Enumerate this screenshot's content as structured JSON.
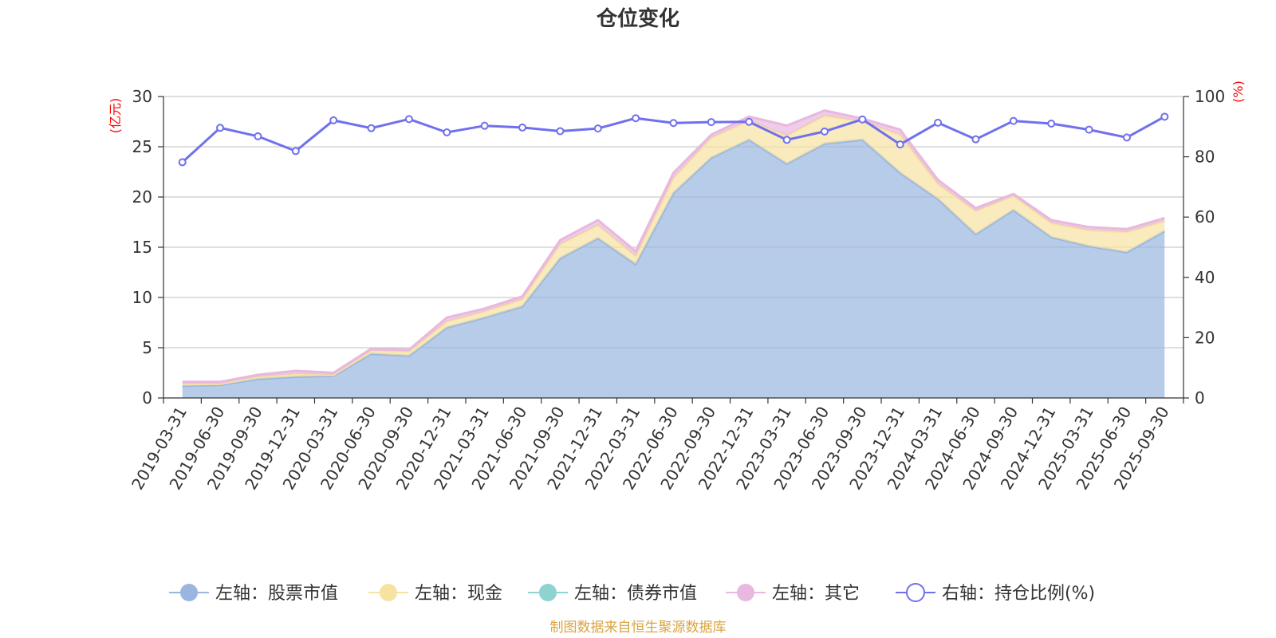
{
  "chart_data": {
    "type": "area",
    "title": "仓位变化",
    "left_axis_unit": "(亿元)",
    "right_axis_unit": "(%)",
    "left_ylim": [
      0,
      30
    ],
    "left_ticks": [
      "0",
      "5",
      "10",
      "15",
      "20",
      "25",
      "30"
    ],
    "right_ylim": [
      0,
      100
    ],
    "right_ticks": [
      "0",
      "20",
      "40",
      "60",
      "80",
      "100"
    ],
    "categories": [
      "2019-03-31",
      "2019-06-30",
      "2019-09-30",
      "2019-12-31",
      "2020-03-31",
      "2020-06-30",
      "2020-09-30",
      "2020-12-31",
      "2021-03-31",
      "2021-06-30",
      "2021-09-30",
      "2021-12-31",
      "2022-03-31",
      "2022-06-30",
      "2022-09-30",
      "2022-12-31",
      "2023-03-31",
      "2023-06-30",
      "2023-09-30",
      "2023-12-31",
      "2024-03-31",
      "2024-06-30",
      "2024-09-30",
      "2024-12-31",
      "2025-03-31",
      "2025-06-30",
      "2025-09-30"
    ],
    "series": [
      {
        "name": "左轴：股票市值",
        "axis": "left",
        "kind": "area",
        "color": "#98b6e0",
        "values": [
          1.2,
          1.3,
          1.9,
          2.1,
          2.2,
          4.4,
          4.2,
          7.0,
          8.0,
          9.1,
          13.9,
          15.9,
          13.3,
          20.4,
          23.9,
          25.7,
          23.3,
          25.3,
          25.7,
          22.4,
          19.8,
          16.3,
          18.7,
          16.0,
          15.1,
          14.5,
          16.6
        ]
      },
      {
        "name": "左轴：现金",
        "axis": "left",
        "kind": "area",
        "color": "#f7e3a1",
        "values": [
          0.2,
          0.1,
          0.2,
          0.3,
          0.1,
          0.3,
          0.4,
          0.6,
          0.6,
          0.7,
          1.4,
          1.3,
          0.8,
          1.5,
          2.0,
          1.9,
          2.8,
          2.8,
          1.8,
          3.8,
          1.5,
          2.3,
          1.4,
          1.4,
          1.6,
          2.0,
          1.0
        ]
      },
      {
        "name": "左轴：债券市值",
        "axis": "left",
        "kind": "area",
        "color": "#8fd3d1",
        "values": [
          0,
          0,
          0,
          0,
          0,
          0,
          0,
          0,
          0,
          0,
          0,
          0,
          0,
          0,
          0,
          0,
          0,
          0,
          0,
          0,
          0,
          0,
          0,
          0,
          0,
          0,
          0
        ]
      },
      {
        "name": "左轴：其它",
        "axis": "left",
        "kind": "area",
        "color": "#e8b8de",
        "values": [
          0.2,
          0.2,
          0.2,
          0.3,
          0.2,
          0.2,
          0.2,
          0.4,
          0.3,
          0.3,
          0.4,
          0.5,
          0.5,
          0.5,
          0.3,
          0.4,
          1.0,
          0.5,
          0.3,
          0.5,
          0.4,
          0.3,
          0.2,
          0.3,
          0.3,
          0.3,
          0.3
        ]
      },
      {
        "name": "右轴：持仓比例(%)",
        "axis": "right",
        "kind": "line",
        "color": "#7070ee",
        "values": [
          78.2,
          89.6,
          86.8,
          81.9,
          92.1,
          89.5,
          92.5,
          88.1,
          90.3,
          89.7,
          88.5,
          89.4,
          92.8,
          91.2,
          91.5,
          91.6,
          85.6,
          88.4,
          92.4,
          84.1,
          91.3,
          85.8,
          91.9,
          91.0,
          89.0,
          86.4,
          93.3
        ]
      }
    ],
    "legend": [
      "左轴：股票市值",
      "左轴：现金",
      "左轴：债券市值",
      "左轴：其它",
      "右轴：持仓比例(%)"
    ],
    "legend_position": "bottom",
    "grid": true
  },
  "source_note": "制图数据来自恒生聚源数据库"
}
